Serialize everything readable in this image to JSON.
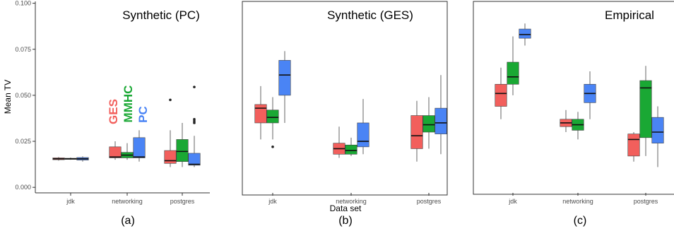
{
  "colors": {
    "GES": "#f25f5c",
    "MMHC": "#1aa834",
    "PC": "#4a84f5"
  },
  "methods": [
    "GES",
    "MMHC",
    "PC"
  ],
  "y_axis_title": "Mean TV",
  "x_axis_title": "Data set",
  "method_labels": [
    "GES",
    "MMHC",
    "PC"
  ],
  "chart_data": [
    {
      "type": "boxplot",
      "title": "Synthetic (PC)",
      "tag": "(a)",
      "categories": [
        "jdk",
        "networking",
        "postgres"
      ],
      "ylim": [
        -0.003,
        0.101
      ],
      "yticks": [
        "0.000",
        "0.025",
        "0.050",
        "0.075",
        "0.100"
      ],
      "ytick_values": [
        0.0,
        0.025,
        0.05,
        0.075,
        0.1
      ],
      "boxes": [
        {
          "cat": 0,
          "method": "GES",
          "wlo": 0.0145,
          "q1": 0.015,
          "med": 0.0155,
          "q3": 0.016,
          "whi": 0.0165,
          "outliers": []
        },
        {
          "cat": 0,
          "method": "MMHC",
          "wlo": 0.015,
          "q1": 0.0152,
          "med": 0.0155,
          "q3": 0.0158,
          "whi": 0.0162,
          "outliers": []
        },
        {
          "cat": 0,
          "method": "PC",
          "wlo": 0.014,
          "q1": 0.0148,
          "med": 0.0155,
          "q3": 0.0162,
          "whi": 0.0168,
          "outliers": []
        },
        {
          "cat": 1,
          "method": "GES",
          "wlo": 0.015,
          "q1": 0.016,
          "med": 0.0165,
          "q3": 0.022,
          "whi": 0.025,
          "outliers": []
        },
        {
          "cat": 1,
          "method": "MMHC",
          "wlo": 0.015,
          "q1": 0.016,
          "med": 0.0175,
          "q3": 0.019,
          "whi": 0.024,
          "outliers": []
        },
        {
          "cat": 1,
          "method": "PC",
          "wlo": 0.014,
          "q1": 0.016,
          "med": 0.0165,
          "q3": 0.027,
          "whi": 0.031,
          "outliers": []
        },
        {
          "cat": 2,
          "method": "GES",
          "wlo": 0.011,
          "q1": 0.013,
          "med": 0.0145,
          "q3": 0.02,
          "whi": 0.031,
          "outliers": [
            0.0475
          ]
        },
        {
          "cat": 2,
          "method": "MMHC",
          "wlo": 0.011,
          "q1": 0.014,
          "med": 0.0195,
          "q3": 0.026,
          "whi": 0.035,
          "outliers": []
        },
        {
          "cat": 2,
          "method": "PC",
          "wlo": 0.011,
          "q1": 0.012,
          "med": 0.0125,
          "q3": 0.0185,
          "whi": 0.028,
          "outliers": [
            0.0545,
            0.037,
            0.036,
            0.035
          ]
        }
      ]
    },
    {
      "type": "boxplot",
      "title": "Synthetic (GES)",
      "tag": "(b)",
      "categories": [
        "jdk",
        "networking",
        "postgres"
      ],
      "ylim": [
        -0.003,
        0.101
      ],
      "boxes": [
        {
          "cat": 0,
          "method": "GES",
          "wlo": 0.026,
          "q1": 0.035,
          "med": 0.043,
          "q3": 0.045,
          "whi": 0.055,
          "outliers": []
        },
        {
          "cat": 0,
          "method": "MMHC",
          "wlo": 0.026,
          "q1": 0.035,
          "med": 0.038,
          "q3": 0.042,
          "whi": 0.049,
          "outliers": [
            0.022
          ]
        },
        {
          "cat": 0,
          "method": "PC",
          "wlo": 0.035,
          "q1": 0.05,
          "med": 0.061,
          "q3": 0.069,
          "whi": 0.074,
          "outliers": []
        },
        {
          "cat": 1,
          "method": "GES",
          "wlo": 0.016,
          "q1": 0.018,
          "med": 0.021,
          "q3": 0.024,
          "whi": 0.033,
          "outliers": []
        },
        {
          "cat": 1,
          "method": "MMHC",
          "wlo": 0.017,
          "q1": 0.018,
          "med": 0.02,
          "q3": 0.023,
          "whi": 0.027,
          "outliers": []
        },
        {
          "cat": 1,
          "method": "PC",
          "wlo": 0.018,
          "q1": 0.022,
          "med": 0.025,
          "q3": 0.035,
          "whi": 0.048,
          "outliers": []
        },
        {
          "cat": 2,
          "method": "GES",
          "wlo": 0.014,
          "q1": 0.021,
          "med": 0.028,
          "q3": 0.039,
          "whi": 0.047,
          "outliers": []
        },
        {
          "cat": 2,
          "method": "MMHC",
          "wlo": 0.021,
          "q1": 0.03,
          "med": 0.034,
          "q3": 0.039,
          "whi": 0.049,
          "outliers": []
        },
        {
          "cat": 2,
          "method": "PC",
          "wlo": 0.018,
          "q1": 0.029,
          "med": 0.035,
          "q3": 0.043,
          "whi": 0.061,
          "outliers": []
        }
      ]
    },
    {
      "type": "boxplot",
      "title": "Empirical",
      "tag": "(c)",
      "categories": [
        "jdk",
        "networking",
        "postgres"
      ],
      "ylim": [
        -0.003,
        0.101
      ],
      "boxes": [
        {
          "cat": 0,
          "method": "GES",
          "wlo": 0.037,
          "q1": 0.044,
          "med": 0.051,
          "q3": 0.056,
          "whi": 0.065,
          "outliers": []
        },
        {
          "cat": 0,
          "method": "MMHC",
          "wlo": 0.05,
          "q1": 0.056,
          "med": 0.06,
          "q3": 0.068,
          "whi": 0.082,
          "outliers": []
        },
        {
          "cat": 0,
          "method": "PC",
          "wlo": 0.077,
          "q1": 0.081,
          "med": 0.083,
          "q3": 0.086,
          "whi": 0.089,
          "outliers": []
        },
        {
          "cat": 1,
          "method": "GES",
          "wlo": 0.03,
          "q1": 0.033,
          "med": 0.035,
          "q3": 0.037,
          "whi": 0.042,
          "outliers": []
        },
        {
          "cat": 1,
          "method": "MMHC",
          "wlo": 0.026,
          "q1": 0.031,
          "med": 0.034,
          "q3": 0.037,
          "whi": 0.041,
          "outliers": []
        },
        {
          "cat": 1,
          "method": "PC",
          "wlo": 0.037,
          "q1": 0.046,
          "med": 0.051,
          "q3": 0.056,
          "whi": 0.063,
          "outliers": []
        },
        {
          "cat": 2,
          "method": "GES",
          "wlo": 0.014,
          "q1": 0.017,
          "med": 0.026,
          "q3": 0.029,
          "whi": 0.03,
          "outliers": []
        },
        {
          "cat": 2,
          "method": "MMHC",
          "wlo": 0.017,
          "q1": 0.027,
          "med": 0.054,
          "q3": 0.058,
          "whi": 0.066,
          "outliers": []
        },
        {
          "cat": 2,
          "method": "PC",
          "wlo": 0.011,
          "q1": 0.024,
          "med": 0.03,
          "q3": 0.038,
          "whi": 0.044,
          "outliers": []
        }
      ]
    }
  ]
}
